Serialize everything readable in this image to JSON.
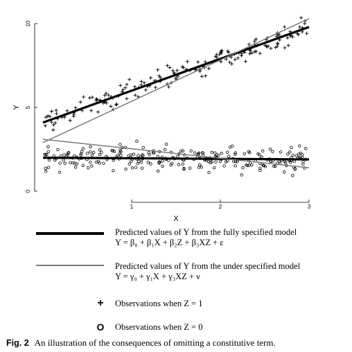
{
  "chart_data": {
    "type": "scatter",
    "xlabel": "X",
    "ylabel": "Y",
    "xlim": [
      0,
      3
    ],
    "ylim": [
      0,
      10.5
    ],
    "x_ticks": [
      1,
      2,
      3
    ],
    "y_ticks": [
      0,
      5,
      10
    ],
    "lines": [
      {
        "group": "z1",
        "style": "thick",
        "x": [
          0,
          3
        ],
        "y": [
          4.1,
          9.8
        ]
      },
      {
        "group": "z1",
        "style": "thin",
        "x": [
          0,
          3
        ],
        "y": [
          2.9,
          10.3
        ]
      },
      {
        "group": "z0",
        "style": "thick",
        "x": [
          0,
          3
        ],
        "y": [
          2.0,
          1.9
        ]
      },
      {
        "group": "z0",
        "style": "thin",
        "x": [
          0,
          3
        ],
        "y": [
          3.1,
          1.4
        ]
      }
    ],
    "scatter_groups": [
      {
        "symbol": "+",
        "n": 180,
        "intercept": 4.1,
        "slope": 1.9,
        "spread": 0.45
      },
      {
        "symbol": "o",
        "n": 260,
        "intercept": 2.0,
        "slope": -0.03,
        "spread": 0.55
      }
    ],
    "legend": [
      {
        "id": "fully",
        "style": "thick-line",
        "text_line1": "Predicted values of Y from the fully specified model",
        "text_line2": "Y = β₀ + β₁X + β₂Z + β₃XZ + ε"
      },
      {
        "id": "under",
        "style": "thin-line",
        "text_line1": "Predicted values of Y from the under specified model",
        "text_line2": "Y = γ₀ + γ₁X + γ₃XZ + ν"
      },
      {
        "id": "z1",
        "symbol": "+",
        "text": "Observations when Z = 1"
      },
      {
        "id": "z0",
        "symbol": "O",
        "text": "Observations when Z = 0"
      }
    ]
  },
  "caption": {
    "label": "Fig. 2",
    "text": "An illustration of the consequences of omitting a constitutive term."
  }
}
